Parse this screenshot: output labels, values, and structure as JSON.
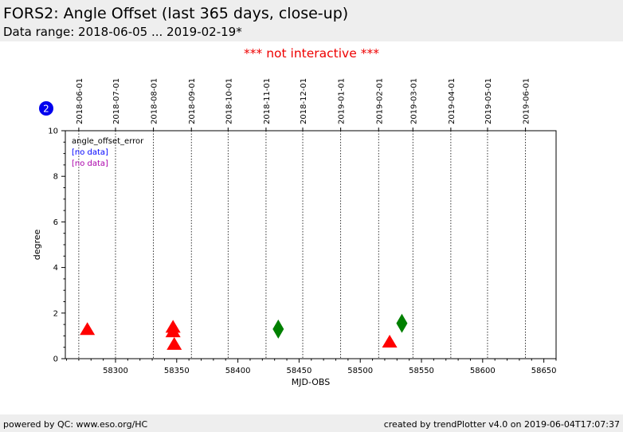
{
  "header": {
    "title": "FORS2: Angle Offset (last 365 days, close-up)",
    "subtitle": "Data range: 2018-06-05 ... 2019-02-19*"
  },
  "notice": "*** not interactive ***",
  "badge": "2",
  "footer": {
    "left": "powered by QC: www.eso.org/HC",
    "right": "created by trendPlotter v4.0 on 2019-06-04T17:07:37"
  },
  "colors": {
    "red": "#ff0000",
    "green": "#008000",
    "blue": "#0000ff",
    "magenta": "#aa00aa",
    "badge": "#0000ee"
  },
  "chart_data": {
    "type": "scatter",
    "xlabel": "MJD-OBS",
    "ylabel": "degree",
    "xlim": [
      58259,
      58660
    ],
    "ylim": [
      0,
      10
    ],
    "x_ticks": [
      58300,
      58350,
      58400,
      58450,
      58500,
      58550,
      58600,
      58650
    ],
    "y_ticks": [
      0,
      2,
      4,
      6,
      8,
      10
    ],
    "grid": "vertical dotted lines at month starts",
    "top_axis": {
      "labels": [
        "2018-06-01",
        "2018-07-01",
        "2018-08-01",
        "2018-09-01",
        "2018-10-01",
        "2018-11-01",
        "2018-12-01",
        "2019-01-01",
        "2019-02-01",
        "2019-03-01",
        "2019-04-01",
        "2019-05-01",
        "2019-06-01"
      ],
      "mjd": [
        58270,
        58300,
        58331,
        58362,
        58392,
        58423,
        58453,
        58484,
        58515,
        58543,
        58574,
        58604,
        58635
      ]
    },
    "legend": {
      "placement": "top-left",
      "entries": [
        {
          "text": "angle_offset_error",
          "color": "#000000"
        },
        {
          "text": "[no data]",
          "color": "#0000ff"
        },
        {
          "text": "[no data]",
          "color": "#aa00aa"
        }
      ]
    },
    "series": [
      {
        "marker": "triangle",
        "color": "#ff0000",
        "points": [
          {
            "x": 58277,
            "y": 1.25
          },
          {
            "x": 58347,
            "y": 1.35
          },
          {
            "x": 58347,
            "y": 1.15
          },
          {
            "x": 58348,
            "y": 0.6
          },
          {
            "x": 58524,
            "y": 0.7
          }
        ]
      },
      {
        "marker": "diamond",
        "color": "#008000",
        "points": [
          {
            "x": 58433,
            "y": 1.3
          },
          {
            "x": 58534,
            "y": 1.55
          }
        ]
      }
    ]
  }
}
